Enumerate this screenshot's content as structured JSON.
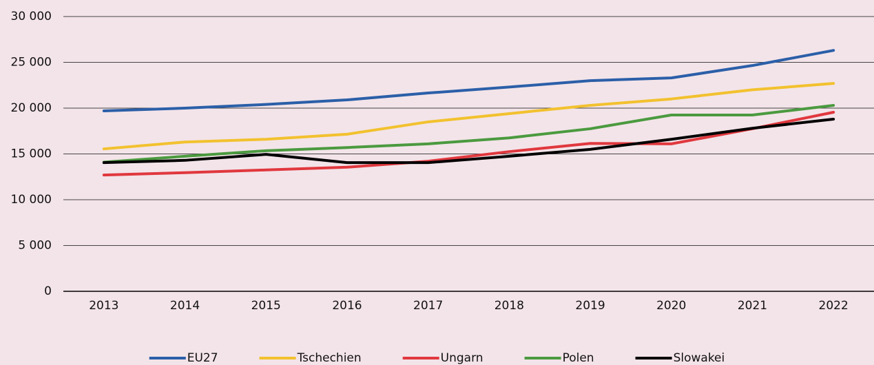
{
  "chart_data": {
    "type": "line",
    "categories": [
      "2013",
      "2014",
      "2015",
      "2016",
      "2017",
      "2018",
      "2019",
      "2020",
      "2021",
      "2022"
    ],
    "series": [
      {
        "name": "EU27",
        "color": "#2b5fa8",
        "values": [
          19700,
          20000,
          20400,
          20900,
          21650,
          22300,
          23000,
          23300,
          24650,
          26300
        ]
      },
      {
        "name": "Tschechien",
        "color": "#f2c12e",
        "values": [
          15550,
          16300,
          16600,
          17150,
          18500,
          19400,
          20300,
          21000,
          22000,
          22700
        ]
      },
      {
        "name": "Ungarn",
        "color": "#e0383e",
        "values": [
          12700,
          12950,
          13250,
          13550,
          14200,
          15250,
          16150,
          16100,
          17750,
          19550
        ]
      },
      {
        "name": "Polen",
        "color": "#4b9a3f",
        "values": [
          14100,
          14750,
          15350,
          15700,
          16100,
          16750,
          17750,
          19250,
          19250,
          20300
        ]
      },
      {
        "name": "Slowakei",
        "color": "#000000",
        "values": [
          14050,
          14300,
          14950,
          14050,
          14050,
          14750,
          15500,
          16600,
          17800,
          18800
        ]
      }
    ],
    "ylim": [
      0,
      30000
    ],
    "yticks": [
      0,
      {
        "value": 5000,
        "label": "5 000"
      },
      {
        "value": 10000,
        "label": "10 000"
      },
      {
        "value": 15000,
        "label": "15 000"
      },
      {
        "value": 20000,
        "label": "20 000"
      },
      {
        "value": 25000,
        "label": "25 000"
      },
      {
        "value": 30000,
        "label": "30 000"
      }
    ],
    "grid": true,
    "legend": "bottom"
  }
}
